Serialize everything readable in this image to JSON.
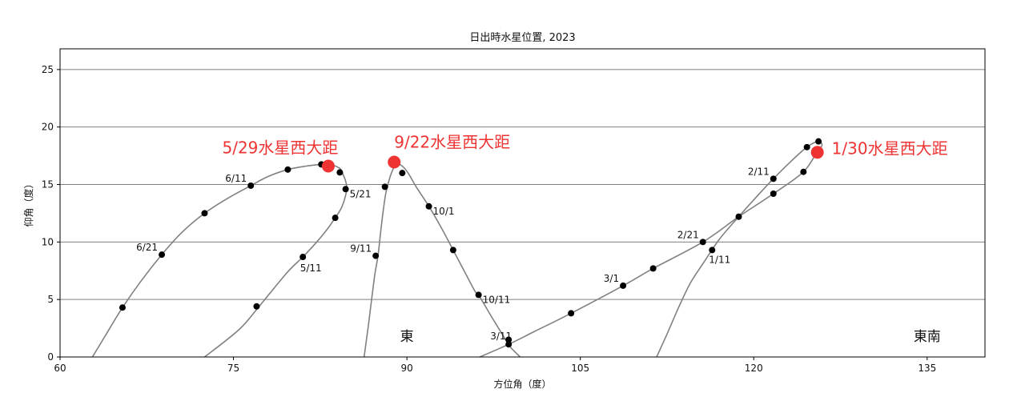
{
  "chart_data": {
    "type": "line",
    "title": "日出時水星位置, 2023",
    "xlabel": "方位角（度）",
    "ylabel": "仰角（度）",
    "xlim": [
      60,
      140
    ],
    "ylim": [
      0,
      26.8
    ],
    "xticks": [
      60,
      75,
      90,
      105,
      120,
      135
    ],
    "yticks": [
      0,
      5,
      10,
      15,
      20,
      25
    ],
    "grid": "horizontal",
    "colors": {
      "line": "#808080",
      "point": "#000000",
      "highlight": "#ee3333",
      "frame": "#000000",
      "grid": "#808080"
    },
    "series": [
      {
        "curve": [
          [
            62.8,
            0
          ],
          [
            64,
            2
          ],
          [
            65.4,
            4.3
          ],
          [
            67,
            6.6
          ],
          [
            68.8,
            8.9
          ],
          [
            70.5,
            10.8
          ],
          [
            72.5,
            12.5
          ],
          [
            74.5,
            13.8
          ],
          [
            76.5,
            14.9
          ],
          [
            78,
            15.7
          ],
          [
            79.7,
            16.3
          ],
          [
            81.3,
            16.6
          ],
          [
            82.6,
            16.75
          ],
          [
            83.5,
            16.7
          ],
          [
            84.2,
            16.4
          ],
          [
            84.4,
            16.05
          ],
          [
            84.7,
            15.3
          ],
          [
            84.8,
            14.6
          ],
          [
            84.6,
            13.7
          ],
          [
            84.3,
            12.9
          ],
          [
            83.8,
            12.1
          ],
          [
            83.1,
            11.1
          ],
          [
            82.2,
            10
          ],
          [
            81,
            8.7
          ],
          [
            79.6,
            7.3
          ],
          [
            77.3,
            4.5
          ],
          [
            75.5,
            2.4
          ],
          [
            72.5,
            0
          ]
        ],
        "points": [
          [
            65.4,
            4.3
          ],
          [
            68.8,
            8.9
          ],
          [
            72.5,
            12.5
          ],
          [
            76.5,
            14.9
          ],
          [
            79.7,
            16.3
          ],
          [
            82.6,
            16.75
          ],
          [
            84.2,
            16.05
          ],
          [
            84.7,
            14.6
          ],
          [
            83.8,
            12.1
          ],
          [
            81,
            8.7
          ],
          [
            77,
            4.4
          ]
        ],
        "dates": [
          {
            "text": "6/21",
            "x": 68.8,
            "y": 8.9,
            "pos": "left"
          },
          {
            "text": "6/11",
            "x": 76.5,
            "y": 14.9,
            "pos": "left"
          },
          {
            "text": "5/21",
            "x": 84.7,
            "y": 14.6,
            "pos": "right"
          },
          {
            "text": "5/11",
            "x": 81,
            "y": 8.7,
            "pos": "below"
          }
        ],
        "greatest_elongation": {
          "x": 83.2,
          "y": 16.6,
          "label": "5/29水星西大距"
        }
      },
      {
        "curve": [
          [
            86.3,
            0
          ],
          [
            86.7,
            3
          ],
          [
            87.2,
            7
          ],
          [
            87.5,
            8.8
          ],
          [
            87.8,
            11.5
          ],
          [
            88.1,
            13.8
          ],
          [
            88.3,
            14.8
          ],
          [
            88.7,
            16.1
          ],
          [
            89.1,
            16.8
          ],
          [
            89.6,
            16.6
          ],
          [
            90.1,
            16
          ],
          [
            90.8,
            14.8
          ],
          [
            91.9,
            13.1
          ],
          [
            93,
            11.2
          ],
          [
            94,
            9.3
          ],
          [
            95,
            7.4
          ],
          [
            95.9,
            5.7
          ],
          [
            96.2,
            5.4
          ],
          [
            97.5,
            3.2
          ],
          [
            98.6,
            1.4
          ],
          [
            99,
            0.8
          ],
          [
            99.8,
            0
          ]
        ],
        "points": [
          [
            87.3,
            8.8
          ],
          [
            88.1,
            14.8
          ],
          [
            89.6,
            16
          ],
          [
            91.9,
            13.1
          ],
          [
            94,
            9.3
          ],
          [
            96.2,
            5.4
          ],
          [
            98.8,
            1.5
          ]
        ],
        "dates": [
          {
            "text": "9/11",
            "x": 87.3,
            "y": 8.8,
            "pos": "left"
          },
          {
            "text": "10/1",
            "x": 91.9,
            "y": 13.1,
            "pos": "right"
          },
          {
            "text": "10/11",
            "x": 96.2,
            "y": 5.4,
            "pos": "right"
          }
        ],
        "greatest_elongation": {
          "x": 88.9,
          "y": 16.95,
          "label": "9/22水星西大距"
        }
      },
      {
        "curve": [
          [
            111.6,
            0
          ],
          [
            112.5,
            2
          ],
          [
            113.5,
            4.3
          ],
          [
            114.5,
            6.4
          ],
          [
            115.6,
            8.1
          ],
          [
            117,
            10.2
          ],
          [
            118.7,
            12.2
          ],
          [
            120.3,
            14
          ],
          [
            121.7,
            15.5
          ],
          [
            123.2,
            17
          ],
          [
            124.6,
            18.25
          ],
          [
            125.6,
            18.75
          ],
          [
            125.9,
            18.4
          ],
          [
            125.5,
            17.9
          ],
          [
            124.3,
            16.1
          ],
          [
            121.7,
            14.2
          ],
          [
            118.7,
            12.2
          ],
          [
            115.6,
            10
          ],
          [
            111.3,
            7.7
          ],
          [
            108.7,
            6.2
          ],
          [
            104.2,
            3.8
          ],
          [
            101,
            2.2
          ],
          [
            98.8,
            1.1
          ],
          [
            96.3,
            0
          ]
        ],
        "points": [
          [
            116.4,
            9.3
          ],
          [
            118.7,
            12.2
          ],
          [
            121.7,
            15.5
          ],
          [
            124.6,
            18.25
          ],
          [
            125.6,
            18.75
          ],
          [
            124.3,
            16.1
          ],
          [
            121.7,
            14.2
          ],
          [
            115.6,
            10
          ],
          [
            111.3,
            7.7
          ],
          [
            108.7,
            6.2
          ],
          [
            104.2,
            3.8
          ],
          [
            98.8,
            1.1
          ]
        ],
        "dates": [
          {
            "text": "1/11",
            "x": 116.4,
            "y": 9.3,
            "pos": "belowright"
          },
          {
            "text": "2/11",
            "x": 121.7,
            "y": 15.5,
            "pos": "left"
          },
          {
            "text": "2/21",
            "x": 115.6,
            "y": 10,
            "pos": "left"
          },
          {
            "text": "3/1",
            "x": 108.7,
            "y": 6.2,
            "pos": "left"
          },
          {
            "text": "3/11",
            "x": 98.8,
            "y": 1.1,
            "pos": "upleft"
          }
        ],
        "greatest_elongation": {
          "x": 125.5,
          "y": 17.8,
          "label": "1/30水星西大距"
        }
      }
    ],
    "directions": [
      {
        "text": "東",
        "x": 90,
        "y": 1.4
      },
      {
        "text": "東南",
        "x": 135,
        "y": 1.4
      }
    ]
  }
}
